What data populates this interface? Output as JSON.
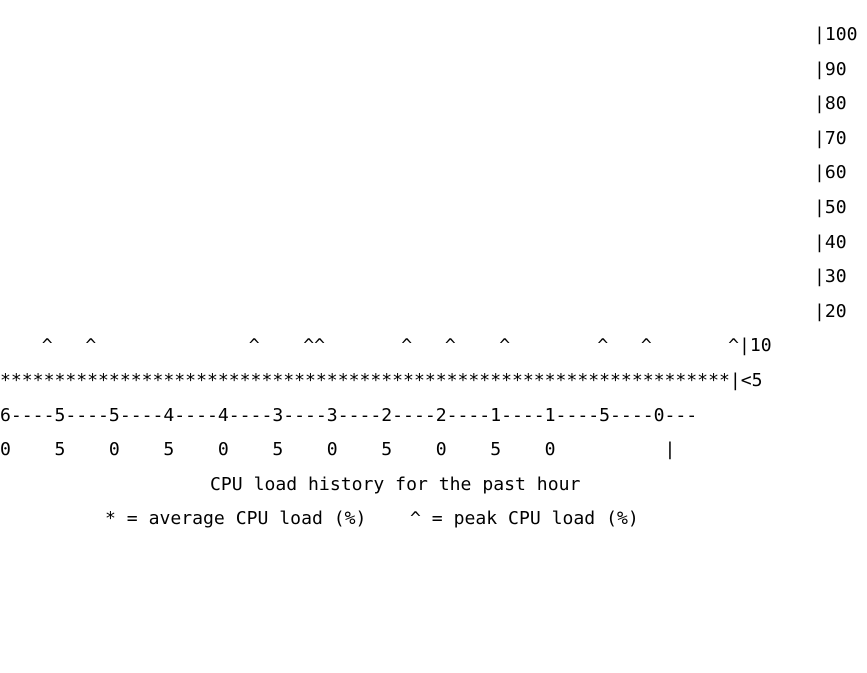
{
  "graph": {
    "y_axis": [
      "|100",
      "|90",
      "|80",
      "|70",
      "|60",
      "|50",
      "|40",
      "|30",
      "|20"
    ],
    "peak_row": "  ^   ^              ^    ^^       ^   ^    ^        ^   ^       ^|10",
    "avg_row": "*******************************************************************|<5",
    "x_axis_top": "6----5----5----4----4----3----3----2----2----1----1----5----0---",
    "x_axis_bottom": "0    5    0    5    0    5    0    5    0    5    0          |",
    "caption": "CPU load history for the past hour",
    "legend": "* = average CPU load (%)    ^ = peak CPU load (%)"
  }
}
